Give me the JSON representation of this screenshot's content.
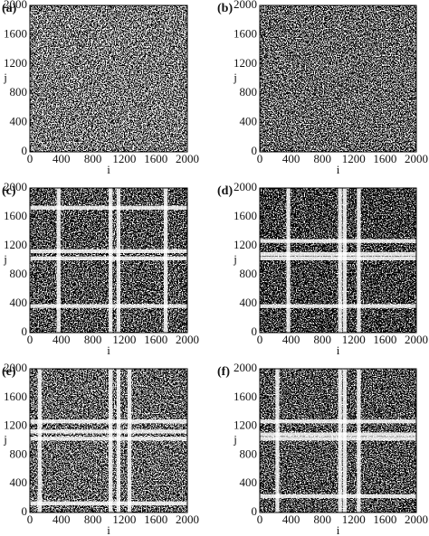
{
  "chart_data": [
    {
      "type": "recurrence",
      "panel_label": "(a)",
      "xlabel": "i",
      "ylabel": "j",
      "xlim": [
        0,
        2000
      ],
      "ylim": [
        0,
        2000
      ],
      "xticks": [
        0,
        400,
        800,
        1200,
        1600,
        2000
      ],
      "yticks": [
        0,
        400,
        800,
        1200,
        1600,
        2000
      ]
    },
    {
      "type": "recurrence",
      "panel_label": "(b)",
      "xlabel": "i",
      "ylabel": "j",
      "xlim": [
        0,
        2000
      ],
      "ylim": [
        0,
        2000
      ],
      "xticks": [
        0,
        400,
        800,
        1200,
        1600,
        2000
      ],
      "yticks": [
        0,
        400,
        800,
        1200,
        1600,
        2000
      ]
    },
    {
      "type": "recurrence",
      "panel_label": "(c)",
      "xlabel": "i",
      "ylabel": "j",
      "xlim": [
        0,
        2000
      ],
      "ylim": [
        0,
        2000
      ],
      "xticks": [
        0,
        400,
        800,
        1200,
        1600,
        2000
      ],
      "yticks": [
        0,
        400,
        800,
        1200,
        1600,
        2000
      ]
    },
    {
      "type": "recurrence",
      "panel_label": "(d)",
      "xlabel": "i",
      "ylabel": "j",
      "xlim": [
        0,
        2000
      ],
      "ylim": [
        0,
        2000
      ],
      "xticks": [
        0,
        400,
        800,
        1200,
        1600,
        2000
      ],
      "yticks": [
        0,
        400,
        800,
        1200,
        1600,
        2000
      ]
    },
    {
      "type": "recurrence",
      "panel_label": "(e)",
      "xlabel": "i",
      "ylabel": "j",
      "xlim": [
        0,
        2000
      ],
      "ylim": [
        0,
        2000
      ],
      "xticks": [
        0,
        400,
        800,
        1200,
        1600,
        2000
      ],
      "yticks": [
        0,
        400,
        800,
        1200,
        1600,
        2000
      ]
    },
    {
      "type": "recurrence",
      "panel_label": "(f)",
      "xlabel": "i",
      "ylabel": "j",
      "xlim": [
        0,
        2000
      ],
      "ylim": [
        0,
        2000
      ],
      "xticks": [
        0,
        400,
        800,
        1200,
        1600,
        2000
      ],
      "yticks": [
        0,
        400,
        800,
        1200,
        1600,
        2000
      ]
    }
  ]
}
